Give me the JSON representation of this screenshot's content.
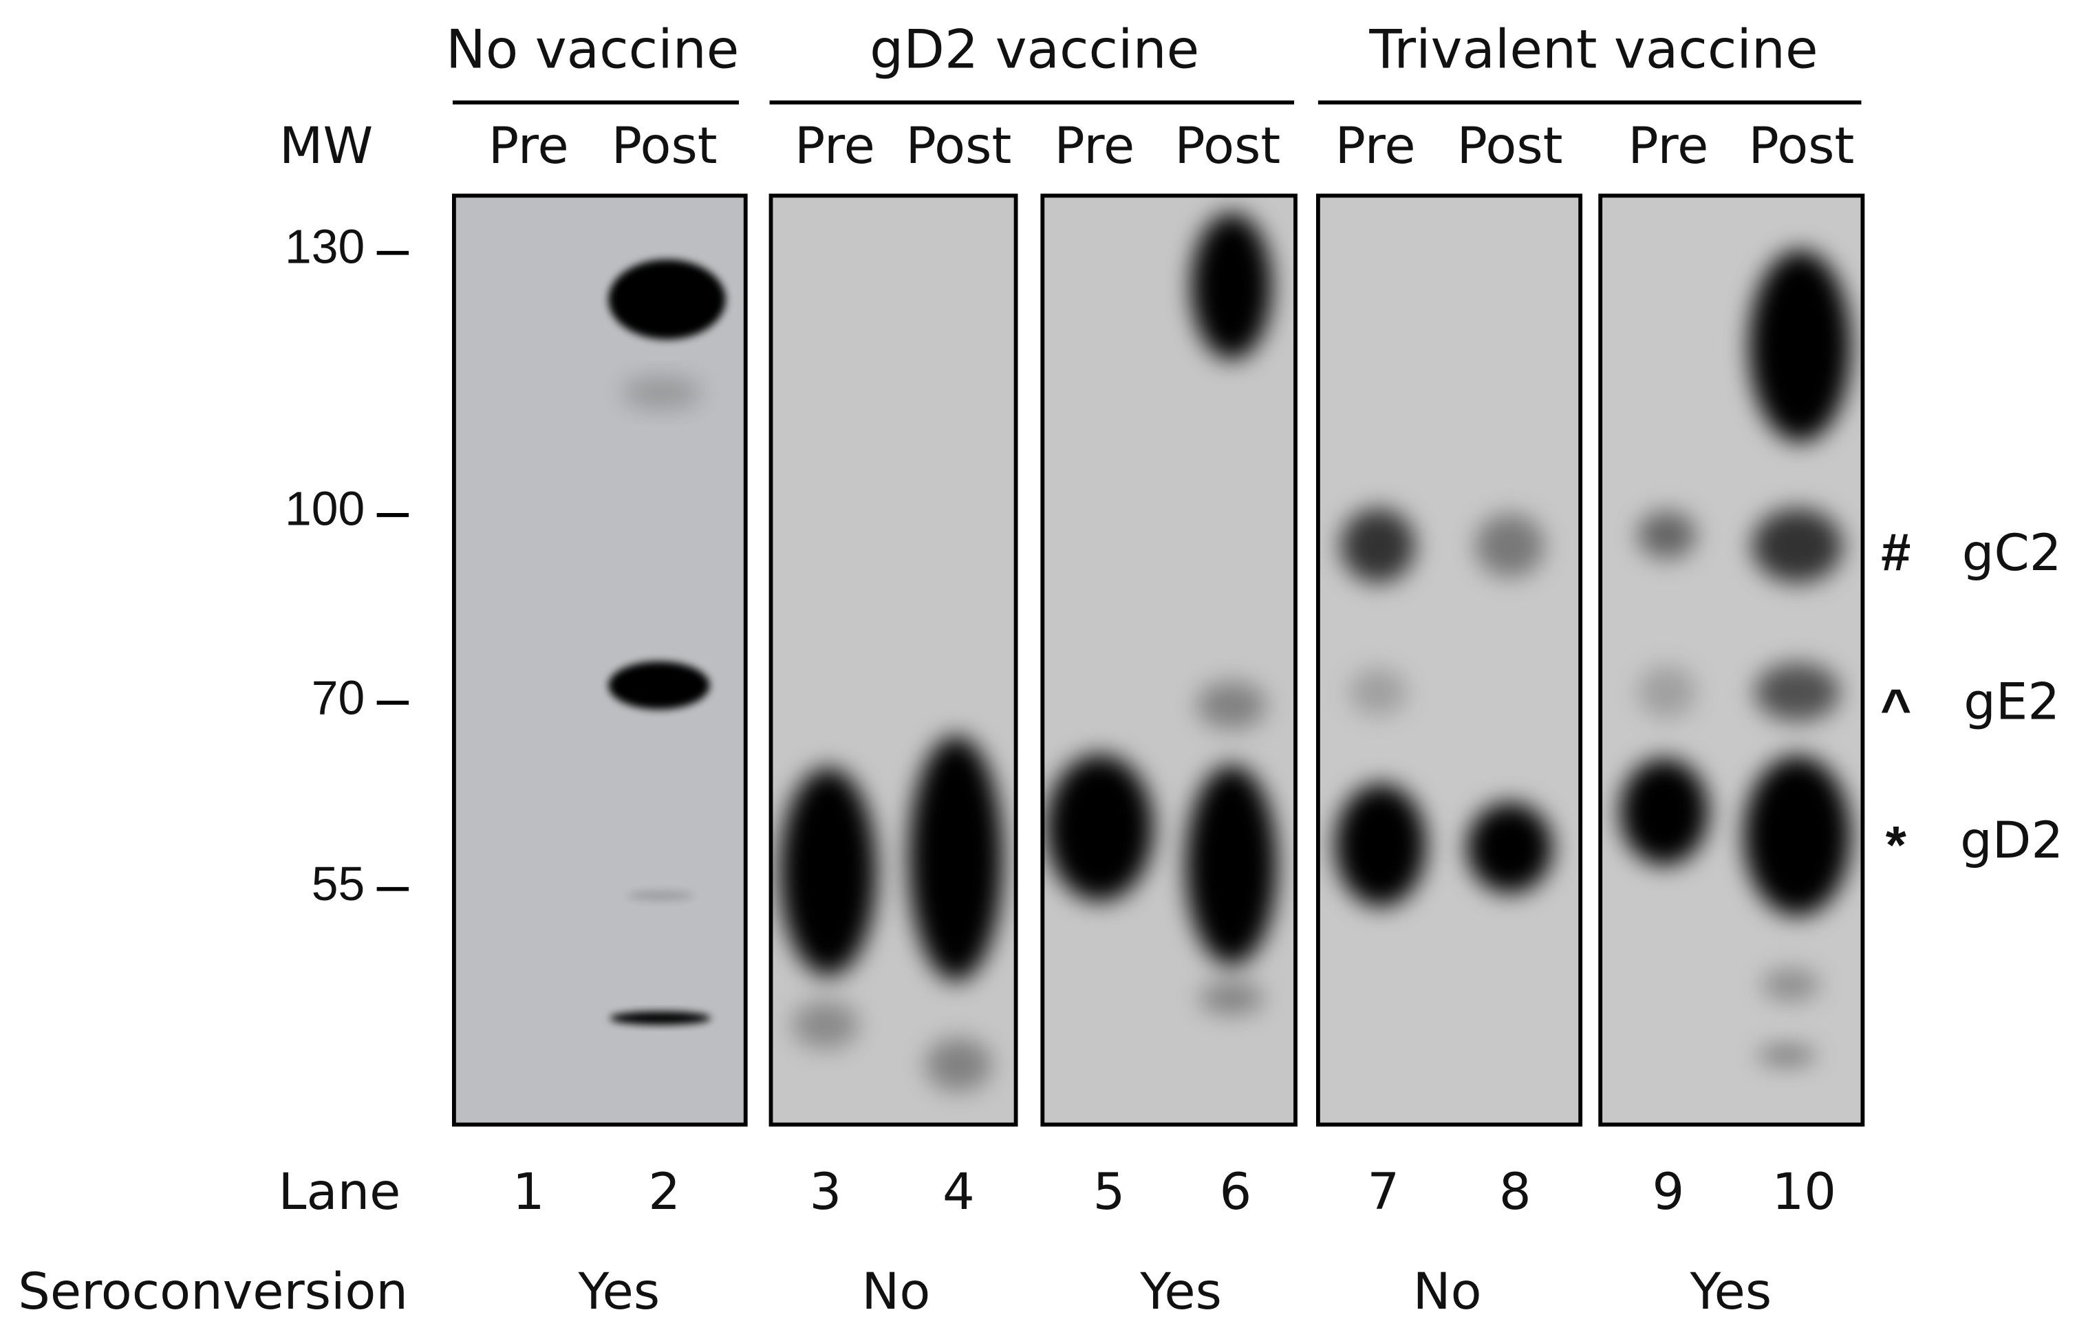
{
  "groups": [
    {
      "label": "No vaccine"
    },
    {
      "label": "gD2 vaccine"
    },
    {
      "label": "Trivalent vaccine"
    }
  ],
  "mw_label": "MW",
  "mw_markers": [
    130,
    100,
    70,
    55
  ],
  "lanes": [
    {
      "timepoint": "Pre",
      "number": 1
    },
    {
      "timepoint": "Post",
      "number": 2
    },
    {
      "timepoint": "Pre",
      "number": 3
    },
    {
      "timepoint": "Post",
      "number": 4
    },
    {
      "timepoint": "Pre",
      "number": 5
    },
    {
      "timepoint": "Post",
      "number": 6
    },
    {
      "timepoint": "Pre",
      "number": 7
    },
    {
      "timepoint": "Post",
      "number": 8
    },
    {
      "timepoint": "Pre",
      "number": 9
    },
    {
      "timepoint": "Post",
      "number": 10
    }
  ],
  "lane_row_label": "Lane",
  "seroconversion_label": "Seroconversion",
  "seroconversion": [
    "Yes",
    "No",
    "Yes",
    "No",
    "Yes"
  ],
  "band_annotations": [
    {
      "symbol": "#",
      "label": "gC2"
    },
    {
      "symbol": "^",
      "label": "gE2"
    },
    {
      "symbol": "*",
      "label": "gD2"
    }
  ]
}
